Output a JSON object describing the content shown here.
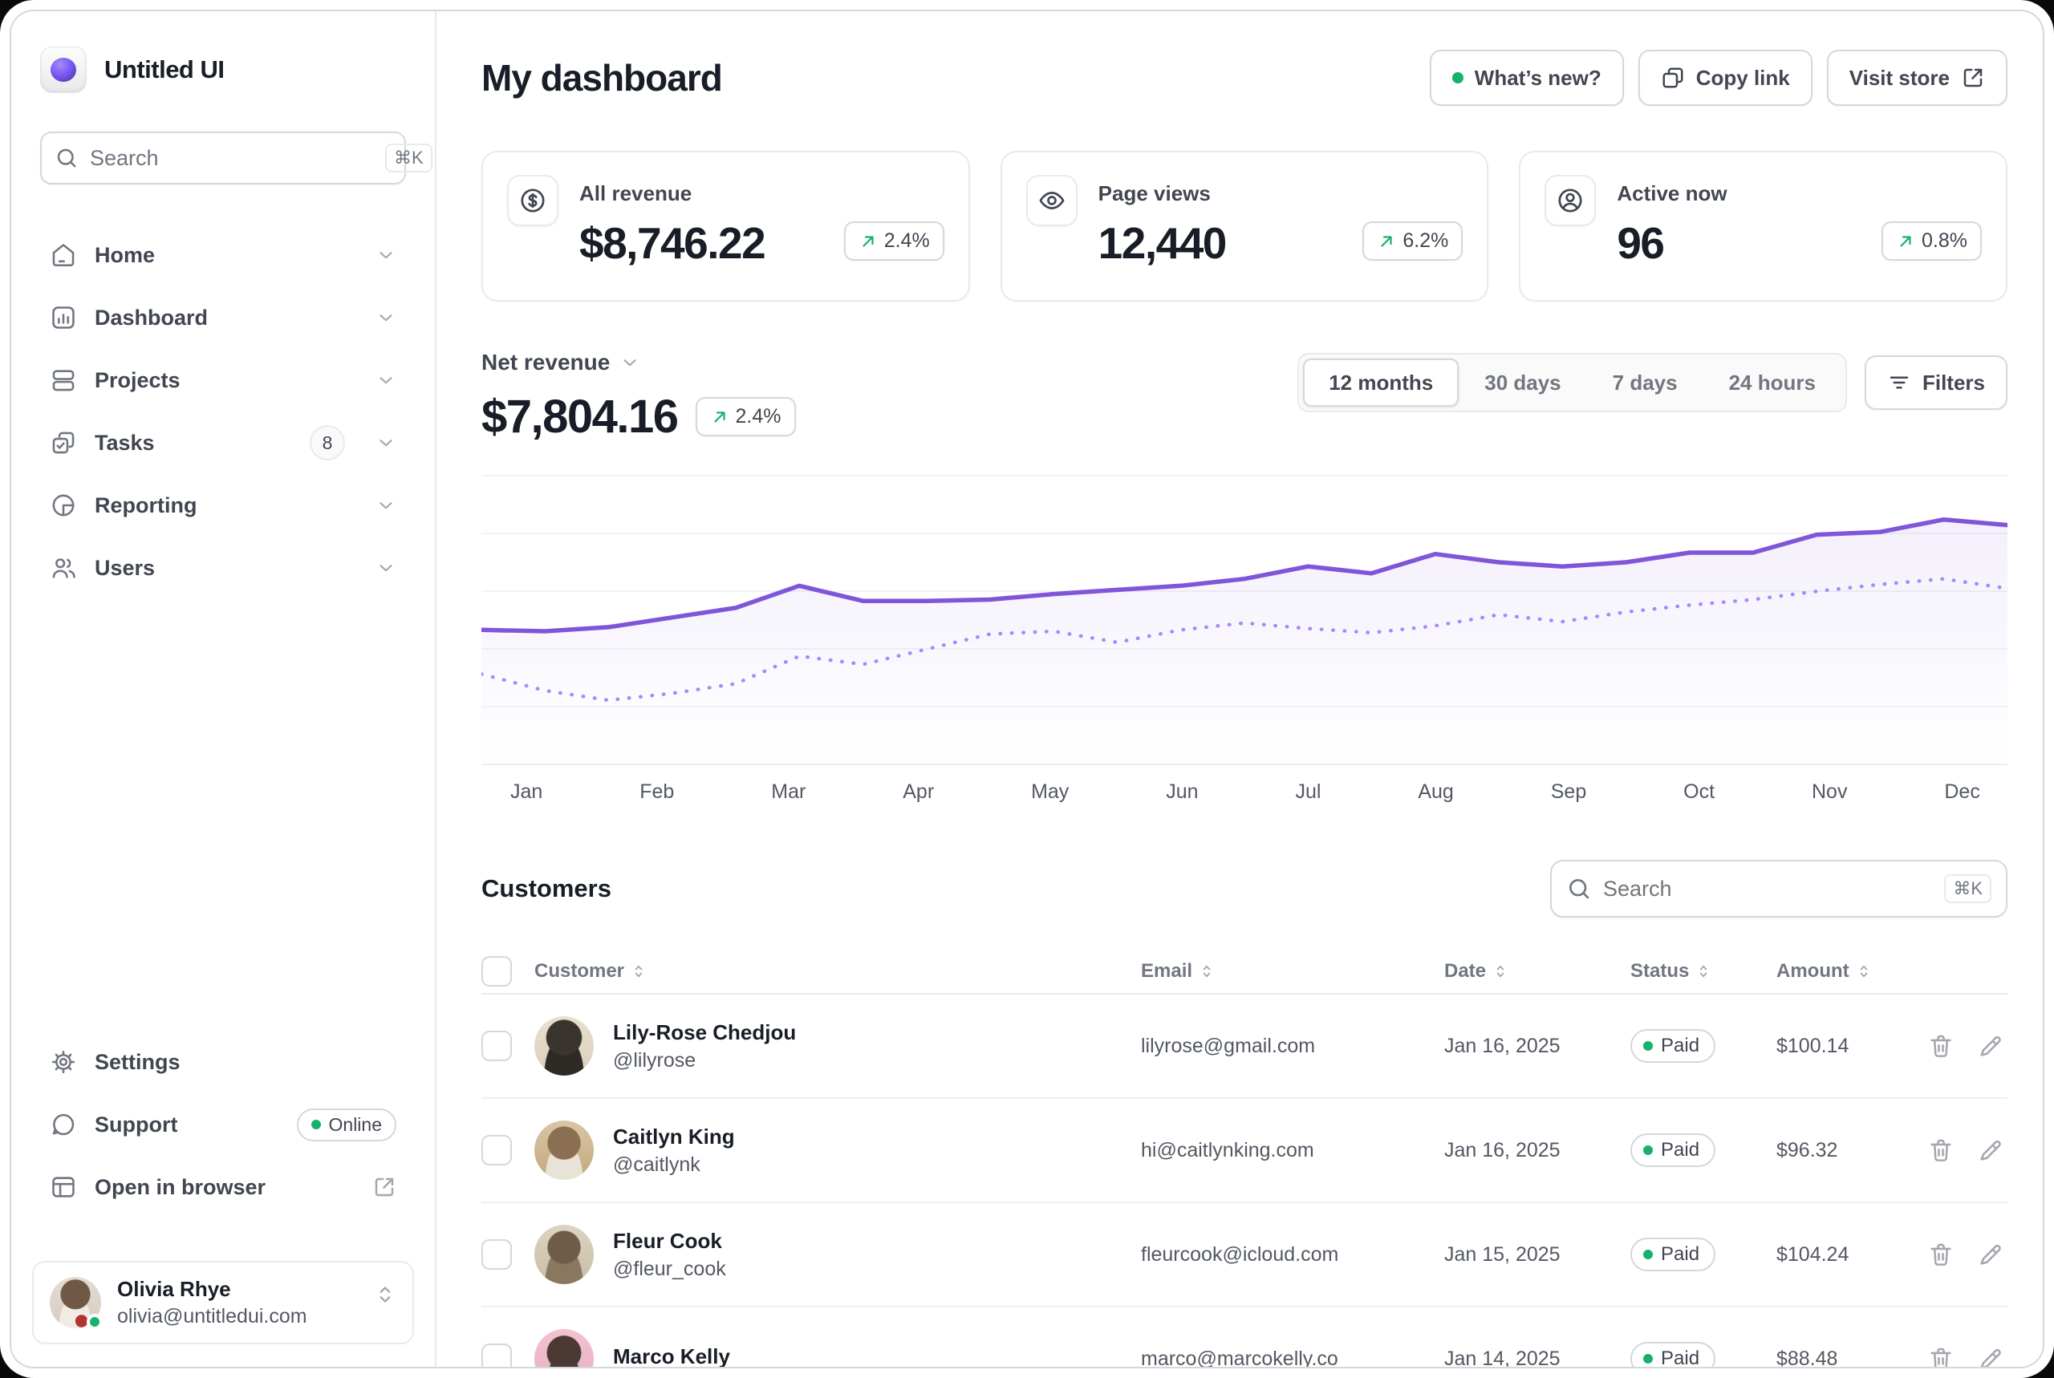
{
  "colors": {
    "accent_purple": "#7F56D9",
    "accent_purple_light": "#A48AFB",
    "success_green": "#17B26A"
  },
  "app": {
    "brand": "Untitled UI"
  },
  "sidebar": {
    "search": {
      "placeholder": "Search",
      "shortcut": "⌘K"
    },
    "nav": [
      {
        "label": "Home"
      },
      {
        "label": "Dashboard"
      },
      {
        "label": "Projects"
      },
      {
        "label": "Tasks",
        "badge": "8"
      },
      {
        "label": "Reporting"
      },
      {
        "label": "Users"
      }
    ],
    "footer": [
      {
        "label": "Settings"
      },
      {
        "label": "Support",
        "badge": "Online"
      },
      {
        "label": "Open in browser"
      }
    ],
    "user": {
      "name": "Olivia Rhye",
      "email": "olivia@untitledui.com"
    }
  },
  "header": {
    "title": "My dashboard",
    "whats_new": "What’s new?",
    "copy_link": "Copy link",
    "visit_store": "Visit store"
  },
  "stats": [
    {
      "label": "All revenue",
      "value": "$8,746.22",
      "delta": "2.4%"
    },
    {
      "label": "Page views",
      "value": "12,440",
      "delta": "6.2%"
    },
    {
      "label": "Active now",
      "value": "96",
      "delta": "0.8%"
    }
  ],
  "revenue": {
    "metric_label": "Net revenue",
    "value": "$7,804.16",
    "delta": "2.4%",
    "ranges": [
      "12 months",
      "30 days",
      "7 days",
      "24 hours"
    ],
    "active_range": "12 months",
    "filters_label": "Filters"
  },
  "chart_data": {
    "type": "line",
    "x": [
      "Jan",
      "Feb",
      "Mar",
      "Apr",
      "May",
      "Jun",
      "Jul",
      "Aug",
      "Sep",
      "Oct",
      "Nov",
      "Dec"
    ],
    "series": [
      {
        "name": "net-revenue-current",
        "style": "solid",
        "values": [
          47,
          46.5,
          48,
          51.5,
          55,
          63,
          57.5,
          57.5,
          58,
          60,
          61.5,
          63,
          65.5,
          70,
          67.5,
          74.5,
          71.5,
          70,
          71.5,
          75,
          75,
          81.5,
          82.5,
          87,
          85
        ]
      },
      {
        "name": "net-revenue-previous",
        "style": "dotted",
        "values": [
          31,
          25,
          21.5,
          24,
          27.5,
          37.5,
          34.5,
          40,
          45.5,
          46.5,
          42.5,
          47,
          49.5,
          47.5,
          46,
          48.5,
          52.5,
          50,
          53.5,
          56,
          58,
          61,
          63.5,
          65.5,
          62
        ]
      }
    ],
    "ylim": [
      0,
      100
    ],
    "grid": true,
    "legend": false
  },
  "customers": {
    "title": "Customers",
    "search": {
      "placeholder": "Search",
      "shortcut": "⌘K"
    },
    "columns": [
      "Customer",
      "Email",
      "Date",
      "Status",
      "Amount"
    ],
    "rows": [
      {
        "name": "Lily-Rose Chedjou",
        "handle": "@lilyrose",
        "email": "lilyrose@gmail.com",
        "date": "Jan 16, 2025",
        "status": "Paid",
        "amount": "$100.14"
      },
      {
        "name": "Caitlyn King",
        "handle": "@caitlynk",
        "email": "hi@caitlynking.com",
        "date": "Jan 16, 2025",
        "status": "Paid",
        "amount": "$96.32"
      },
      {
        "name": "Fleur Cook",
        "handle": "@fleur_cook",
        "email": "fleurcook@icloud.com",
        "date": "Jan 15, 2025",
        "status": "Paid",
        "amount": "$104.24"
      },
      {
        "name": "Marco Kelly",
        "handle": "",
        "email": "marco@marcokelly.co",
        "date": "Jan 14, 2025",
        "status": "Paid",
        "amount": "$88.48"
      }
    ]
  }
}
